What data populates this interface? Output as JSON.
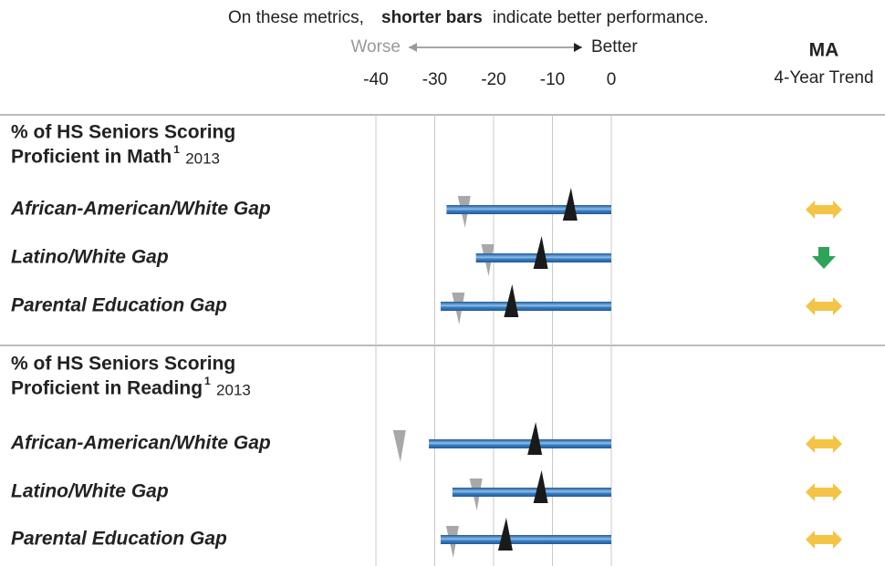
{
  "chart_data": {
    "type": "bar",
    "subtitle_parts": [
      "On these metrics,",
      "shorter bars",
      "indicate better performance."
    ],
    "worse_label": "Worse",
    "better_label": "Better",
    "trend_header": [
      "MA",
      "4-Year Trend"
    ],
    "xlim": [
      -40,
      0
    ],
    "xticks": [
      -40,
      -30,
      -20,
      -10,
      0
    ],
    "grid": true,
    "bar_color": "#2a6db0",
    "gray_marker_color": "#a8a8a8",
    "black_marker_color": "#1a1a1a",
    "trend_colors": {
      "flat": "#f4c447",
      "down": "#2fa35a"
    },
    "groups": [
      {
        "title_lines": [
          "% of HS Seniors Scoring",
          "Proficient in Math"
        ],
        "footnote": "1",
        "year": "2013",
        "categories": [
          "African-American/White Gap",
          "Latino/White Gap",
          "Parental Education Gap"
        ],
        "values": [
          -28,
          -23,
          -29
        ],
        "gray_markers": [
          -25,
          -21,
          -26
        ],
        "black_markers": [
          -7,
          -12,
          -17
        ],
        "trend": [
          "flat",
          "down",
          "flat"
        ]
      },
      {
        "title_lines": [
          "% of HS Seniors Scoring",
          "Proficient in Reading"
        ],
        "footnote": "1",
        "year": "2013",
        "categories": [
          "African-American/White Gap",
          "Latino/White Gap",
          "Parental Education Gap"
        ],
        "values": [
          -31,
          -27,
          -29
        ],
        "gray_markers": [
          -36,
          -23,
          -27
        ],
        "black_markers": [
          -13,
          -12,
          -18
        ],
        "trend": [
          "flat",
          "flat",
          "flat"
        ]
      }
    ]
  }
}
